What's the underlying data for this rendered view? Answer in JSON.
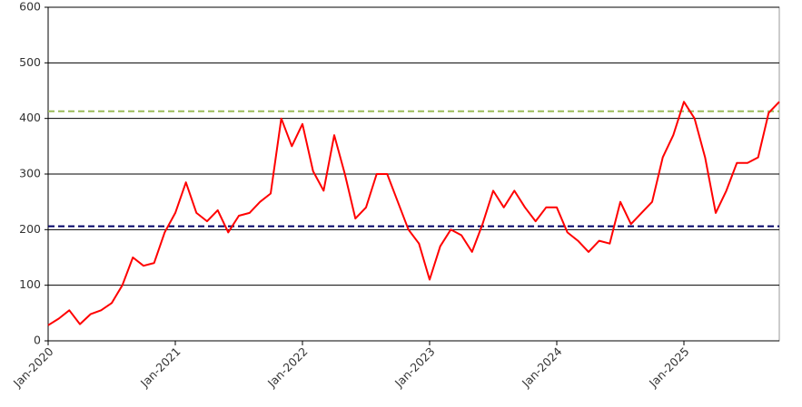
{
  "chart_data": {
    "type": "line",
    "x": [
      "2020-01",
      "2020-02",
      "2020-03",
      "2020-04",
      "2020-05",
      "2020-06",
      "2020-07",
      "2020-08",
      "2020-09",
      "2020-10",
      "2020-11",
      "2020-12",
      "2021-01",
      "2021-02",
      "2021-03",
      "2021-04",
      "2021-05",
      "2021-06",
      "2021-07",
      "2021-08",
      "2021-09",
      "2021-10",
      "2021-11",
      "2021-12",
      "2022-01",
      "2022-02",
      "2022-03",
      "2022-04",
      "2022-05",
      "2022-06",
      "2022-07",
      "2022-08",
      "2022-09",
      "2022-10",
      "2022-11",
      "2022-12",
      "2023-01",
      "2023-02",
      "2023-03",
      "2023-04",
      "2023-05",
      "2023-06",
      "2023-07",
      "2023-08",
      "2023-09",
      "2023-10",
      "2023-11",
      "2023-12",
      "2024-01",
      "2024-02",
      "2024-03",
      "2024-04",
      "2024-05",
      "2024-06",
      "2024-07",
      "2024-08",
      "2024-09",
      "2024-10",
      "2024-11",
      "2024-12",
      "2025-01",
      "2025-02",
      "2025-03",
      "2025-04",
      "2025-05",
      "2025-06",
      "2025-07",
      "2025-08",
      "2025-09",
      "2025-10"
    ],
    "series": [
      {
        "color": "#ff0000",
        "values": [
          28,
          40,
          55,
          30,
          48,
          55,
          68,
          100,
          150,
          135,
          140,
          195,
          230,
          285,
          230,
          215,
          235,
          195,
          225,
          230,
          250,
          265,
          400,
          350,
          390,
          305,
          270,
          370,
          300,
          220,
          240,
          300,
          300,
          250,
          200,
          175,
          110,
          170,
          200,
          190,
          160,
          210,
          270,
          240,
          270,
          240,
          215,
          240,
          240,
          195,
          180,
          160,
          180,
          175,
          250,
          210,
          230,
          250,
          330,
          370,
          430,
          400,
          330,
          230,
          270,
          320,
          320,
          330,
          410,
          430
        ]
      }
    ],
    "reference_lines": [
      {
        "value": 413,
        "color": "#9bbb59"
      },
      {
        "value": 206,
        "color": "#000066"
      }
    ],
    "xlim": [
      "2020-01",
      "2025-10"
    ],
    "xticks": [
      {
        "value": "2020-01",
        "label": "Jan-2020"
      },
      {
        "value": "2021-01",
        "label": "Jan-2021"
      },
      {
        "value": "2022-01",
        "label": "Jan-2022"
      },
      {
        "value": "2023-01",
        "label": "Jan-2023"
      },
      {
        "value": "2024-01",
        "label": "Jan-2024"
      },
      {
        "value": "2025-01",
        "label": "Jan-2025"
      }
    ],
    "ylim": [
      0,
      600
    ],
    "yticks": [
      0,
      100,
      200,
      300,
      400,
      500,
      600
    ],
    "grid": true
  }
}
